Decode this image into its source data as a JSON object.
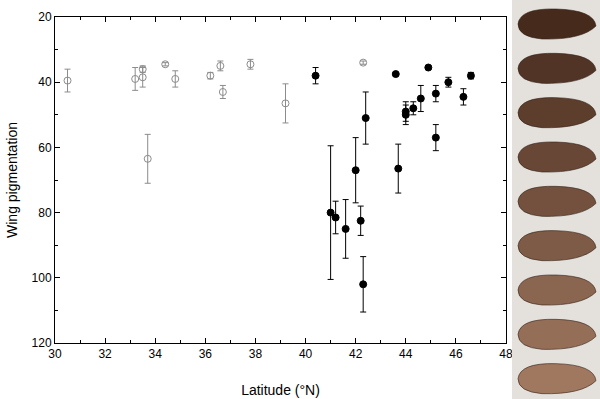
{
  "chart_data": {
    "type": "scatter",
    "x_label": "Latitude (°N)",
    "y_label": "Wing pigmentation",
    "xlim": [
      30,
      48
    ],
    "xticks": [
      30,
      32,
      34,
      36,
      38,
      40,
      42,
      44,
      46,
      48
    ],
    "ylim": [
      120,
      20
    ],
    "yticks": [
      20,
      40,
      60,
      80,
      100,
      120
    ],
    "grid": false,
    "series": [
      {
        "color": "#8c8c8c",
        "marker": "open",
        "x": [
          30.5,
          33.2,
          33.5,
          33.5,
          33.7,
          34.4,
          34.8,
          36.2,
          36.6,
          36.7,
          37.8,
          39.2,
          42.3
        ],
        "values": [
          39.5,
          39,
          36,
          38.5,
          63.5,
          34.5,
          39,
          38,
          35,
          43,
          34.5,
          46.5,
          34
        ],
        "errors": [
          3.5,
          3.5,
          1,
          3,
          7.5,
          0.5,
          2.5,
          1,
          1.5,
          2,
          1.5,
          6,
          0.5
        ]
      },
      {
        "color": "#000000",
        "marker": "filled",
        "x": [
          40.4,
          41.0,
          41.2,
          41.6,
          42.0,
          42.2,
          42.3,
          42.4,
          43.6,
          43.7,
          44.0,
          44.0,
          44.3,
          44.6,
          44.9,
          45.2,
          45.2,
          45.7,
          46.3,
          46.6
        ],
        "values": [
          38,
          80,
          81.5,
          85,
          67,
          82.5,
          102,
          51,
          37.5,
          66.5,
          49,
          50,
          48,
          45,
          35.5,
          43.5,
          57,
          40,
          44.5,
          38
        ],
        "errors": [
          2.5,
          20.5,
          5,
          9,
          10,
          4.5,
          8.5,
          8,
          0.5,
          7.5,
          3,
          3,
          2,
          4,
          0.5,
          2.5,
          4,
          1.5,
          2.5,
          1
        ]
      }
    ]
  }
}
